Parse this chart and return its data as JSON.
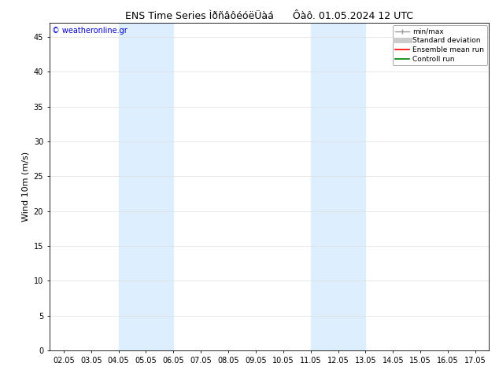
{
  "title": "ENS Time Series ÌðñâôéóëÜàá      Ôàô. 01.05.2024 12 UTC",
  "ylabel": "Wind 10m (m/s)",
  "watermark": "© weatheronline.gr",
  "ylim": [
    0,
    47
  ],
  "yticks": [
    0,
    5,
    10,
    15,
    20,
    25,
    30,
    35,
    40,
    45
  ],
  "xtick_labels": [
    "02.05",
    "03.05",
    "04.05",
    "05.05",
    "06.05",
    "07.05",
    "08.05",
    "09.05",
    "10.05",
    "11.05",
    "12.05",
    "13.05",
    "14.05",
    "15.05",
    "16.05",
    "17.05"
  ],
  "shaded_regions": [
    {
      "xstart": 2,
      "xend": 4,
      "color": "#ddeeff"
    },
    {
      "xstart": 9,
      "xend": 11,
      "color": "#ddeeff"
    }
  ],
  "legend_entries": [
    {
      "label": "min/max",
      "color": "#999999",
      "lw": 1.0
    },
    {
      "label": "Standard deviation",
      "color": "#cccccc",
      "lw": 5
    },
    {
      "label": "Ensemble mean run",
      "color": "red",
      "lw": 1.2
    },
    {
      "label": "Controll run",
      "color": "green",
      "lw": 1.2
    }
  ],
  "bg_color": "#ffffff",
  "plot_bg_color": "#ffffff",
  "border_color": "#000000",
  "grid_color": "#dddddd",
  "watermark_color": "#0000cc",
  "title_fontsize": 9,
  "ylabel_fontsize": 8,
  "tick_fontsize": 7,
  "legend_fontsize": 6.5,
  "watermark_fontsize": 7
}
